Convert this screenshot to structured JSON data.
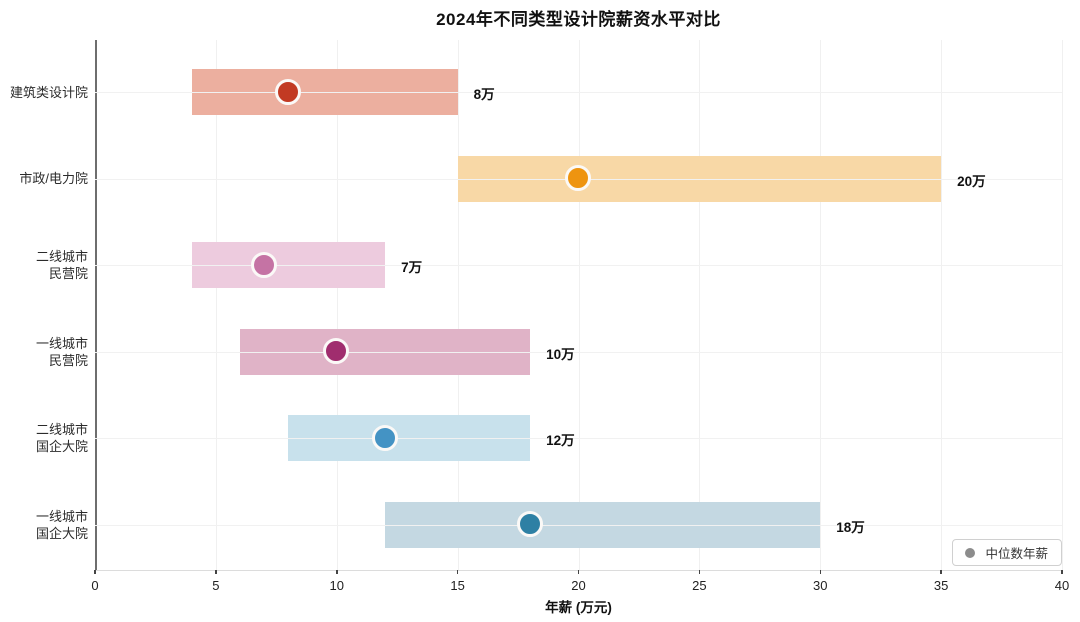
{
  "chart_data": {
    "type": "bar",
    "subtype": "horizontal-range-bars-with-median-markers",
    "title": "2024年不同类型设计院薪资水平对比",
    "xlabel": "年薪 (万元)",
    "xlim": [
      0,
      40
    ],
    "xticks": [
      0,
      5,
      10,
      15,
      20,
      25,
      30,
      35,
      40
    ],
    "grid": true,
    "legend": {
      "label": "中位数年薪",
      "marker": "circle-icon",
      "marker_color": "#8c8c8c",
      "position": "lower-right"
    },
    "rows": [
      {
        "label": "建筑类设计院",
        "range_min": 4,
        "range_max": 15,
        "median": 8,
        "value_label": "8万",
        "bar_color": "#ecaf9f",
        "dot_color": "#c23a23"
      },
      {
        "label": "市政/电力院",
        "range_min": 15,
        "range_max": 35,
        "median": 20,
        "value_label": "20万",
        "bar_color": "#f8d8a6",
        "dot_color": "#ee9410"
      },
      {
        "label": "二线城市\n民营院",
        "range_min": 4,
        "range_max": 12,
        "median": 7,
        "value_label": "7万",
        "bar_color": "#edcbde",
        "dot_color": "#c573a4"
      },
      {
        "label": "一线城市\n民营院",
        "range_min": 6,
        "range_max": 18,
        "median": 10,
        "value_label": "10万",
        "bar_color": "#e0b3c7",
        "dot_color": "#a02d6e"
      },
      {
        "label": "二线城市\n国企大院",
        "range_min": 8,
        "range_max": 18,
        "median": 12,
        "value_label": "12万",
        "bar_color": "#c8e1ec",
        "dot_color": "#4493c4"
      },
      {
        "label": "一线城市\n国企大院",
        "range_min": 12,
        "range_max": 30,
        "median": 18,
        "value_label": "18万",
        "bar_color": "#c4d8e2",
        "dot_color": "#2e80a4"
      }
    ]
  }
}
